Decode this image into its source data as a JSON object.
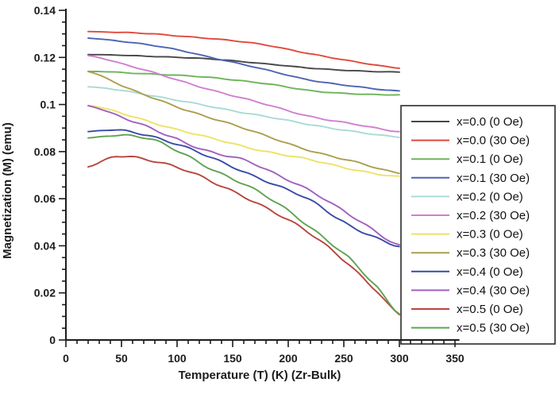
{
  "chart_data": {
    "type": "line",
    "title": "",
    "xlabel": "Temperature (T) (K) (Zr-Bulk)",
    "ylabel": "Magnetization (M) (emu)",
    "xlim": [
      0,
      354
    ],
    "ylim": [
      0,
      0.14
    ],
    "x_range_of_data": [
      20,
      300
    ],
    "grid": false,
    "legend_position": "right",
    "axis_color": "#1c1c1c",
    "x_ticks": {
      "major": [
        0,
        50,
        100,
        150,
        200,
        250,
        300,
        350
      ],
      "labels": [
        "0",
        "50",
        "100",
        "150",
        "200",
        "250",
        "300",
        "350"
      ],
      "minor_step": 10
    },
    "y_ticks": {
      "major": [
        0,
        0.02,
        0.04,
        0.06,
        0.08,
        0.1,
        0.12,
        0.14
      ],
      "labels": [
        "0",
        "0.02",
        "0.04",
        "0.06",
        "0.08",
        "0.1",
        "0.12",
        "0.14"
      ],
      "minor_step": 0.005
    },
    "series": [
      {
        "name": "x=0.0 (0 Oe)",
        "color": "#474747",
        "noise": 0.00015,
        "points": [
          [
            20,
            0.1212
          ],
          [
            60,
            0.1208
          ],
          [
            100,
            0.12
          ],
          [
            140,
            0.119
          ],
          [
            180,
            0.1173
          ],
          [
            220,
            0.1154
          ],
          [
            260,
            0.1144
          ],
          [
            300,
            0.1137
          ]
        ]
      },
      {
        "name": "x=0.0 (30 Oe)",
        "color": "#e1493d",
        "noise": 0.0002,
        "points": [
          [
            20,
            0.131
          ],
          [
            60,
            0.1304
          ],
          [
            100,
            0.1292
          ],
          [
            140,
            0.1276
          ],
          [
            180,
            0.1252
          ],
          [
            220,
            0.1216
          ],
          [
            260,
            0.1181
          ],
          [
            300,
            0.1156
          ]
        ]
      },
      {
        "name": "x=0.1 (0 Oe)",
        "color": "#6cb45b",
        "noise": 0.0002,
        "points": [
          [
            20,
            0.1141
          ],
          [
            60,
            0.1134
          ],
          [
            100,
            0.1124
          ],
          [
            140,
            0.111
          ],
          [
            180,
            0.1089
          ],
          [
            220,
            0.1058
          ],
          [
            260,
            0.1046
          ],
          [
            300,
            0.104
          ]
        ]
      },
      {
        "name": "x=0.1 (30 Oe)",
        "color": "#4d64b4",
        "noise": 0.0002,
        "points": [
          [
            20,
            0.1282
          ],
          [
            60,
            0.1262
          ],
          [
            100,
            0.1233
          ],
          [
            140,
            0.119
          ],
          [
            180,
            0.1147
          ],
          [
            220,
            0.1104
          ],
          [
            260,
            0.1076
          ],
          [
            300,
            0.1058
          ]
        ]
      },
      {
        "name": "x=0.2 (0 Oe)",
        "color": "#a9dad6",
        "noise": 0.0003,
        "points": [
          [
            20,
            0.1075
          ],
          [
            60,
            0.1053
          ],
          [
            100,
            0.1018
          ],
          [
            140,
            0.0982
          ],
          [
            180,
            0.095
          ],
          [
            220,
            0.0913
          ],
          [
            260,
            0.0886
          ],
          [
            300,
            0.0861
          ]
        ]
      },
      {
        "name": "x=0.2 (30 Oe)",
        "color": "#d07fd0",
        "noise": 0.0003,
        "points": [
          [
            20,
            0.1208
          ],
          [
            60,
            0.116
          ],
          [
            100,
            0.1105
          ],
          [
            140,
            0.105
          ],
          [
            180,
            0.1
          ],
          [
            220,
            0.095
          ],
          [
            260,
            0.0915
          ],
          [
            300,
            0.0886
          ]
        ]
      },
      {
        "name": "x=0.3 (0 Oe)",
        "color": "#ece366",
        "noise": 0.0004,
        "points": [
          [
            20,
            0.0996
          ],
          [
            60,
            0.095
          ],
          [
            100,
            0.0893
          ],
          [
            140,
            0.0846
          ],
          [
            180,
            0.0801
          ],
          [
            220,
            0.0764
          ],
          [
            260,
            0.0724
          ],
          [
            300,
            0.0692
          ]
        ]
      },
      {
        "name": "x=0.3 (30 Oe)",
        "color": "#ac9f4d",
        "noise": 0.0004,
        "points": [
          [
            20,
            0.114
          ],
          [
            60,
            0.106
          ],
          [
            100,
            0.099
          ],
          [
            140,
            0.093
          ],
          [
            180,
            0.0866
          ],
          [
            220,
            0.0805
          ],
          [
            260,
            0.0755
          ],
          [
            300,
            0.071
          ]
        ]
      },
      {
        "name": "x=0.4 (0 Oe)",
        "color": "#3a4aa8",
        "noise": 0.0006,
        "points": [
          [
            20,
            0.0885
          ],
          [
            45,
            0.0891
          ],
          [
            70,
            0.0875
          ],
          [
            100,
            0.0831
          ],
          [
            130,
            0.0774
          ],
          [
            160,
            0.0716
          ],
          [
            190,
            0.0656
          ],
          [
            220,
            0.0591
          ],
          [
            250,
            0.0502
          ],
          [
            275,
            0.0444
          ],
          [
            300,
            0.0396
          ]
        ]
      },
      {
        "name": "x=0.4 (30 Oe)",
        "color": "#a160bf",
        "noise": 0.0006,
        "points": [
          [
            20,
            0.0995
          ],
          [
            60,
            0.0928
          ],
          [
            100,
            0.0853
          ],
          [
            130,
            0.0801
          ],
          [
            160,
            0.0763
          ],
          [
            190,
            0.0701
          ],
          [
            220,
            0.0636
          ],
          [
            250,
            0.0547
          ],
          [
            275,
            0.047
          ],
          [
            300,
            0.0403
          ]
        ]
      },
      {
        "name": "x=0.5 (0 Oe)",
        "color": "#b8453d",
        "noise": 0.0007,
        "points": [
          [
            20,
            0.0735
          ],
          [
            45,
            0.0779
          ],
          [
            75,
            0.0767
          ],
          [
            105,
            0.0725
          ],
          [
            135,
            0.0662
          ],
          [
            165,
            0.06
          ],
          [
            195,
            0.0523
          ],
          [
            225,
            0.0432
          ],
          [
            255,
            0.0322
          ],
          [
            280,
            0.0208
          ],
          [
            300,
            0.0106
          ]
        ]
      },
      {
        "name": "x=0.5 (30 Oe)",
        "color": "#5ea350",
        "noise": 0.0007,
        "points": [
          [
            20,
            0.0858
          ],
          [
            45,
            0.087
          ],
          [
            75,
            0.0852
          ],
          [
            105,
            0.0793
          ],
          [
            135,
            0.0718
          ],
          [
            165,
            0.0648
          ],
          [
            195,
            0.0566
          ],
          [
            225,
            0.0462
          ],
          [
            255,
            0.0345
          ],
          [
            280,
            0.0222
          ],
          [
            300,
            0.0116
          ]
        ]
      }
    ]
  }
}
